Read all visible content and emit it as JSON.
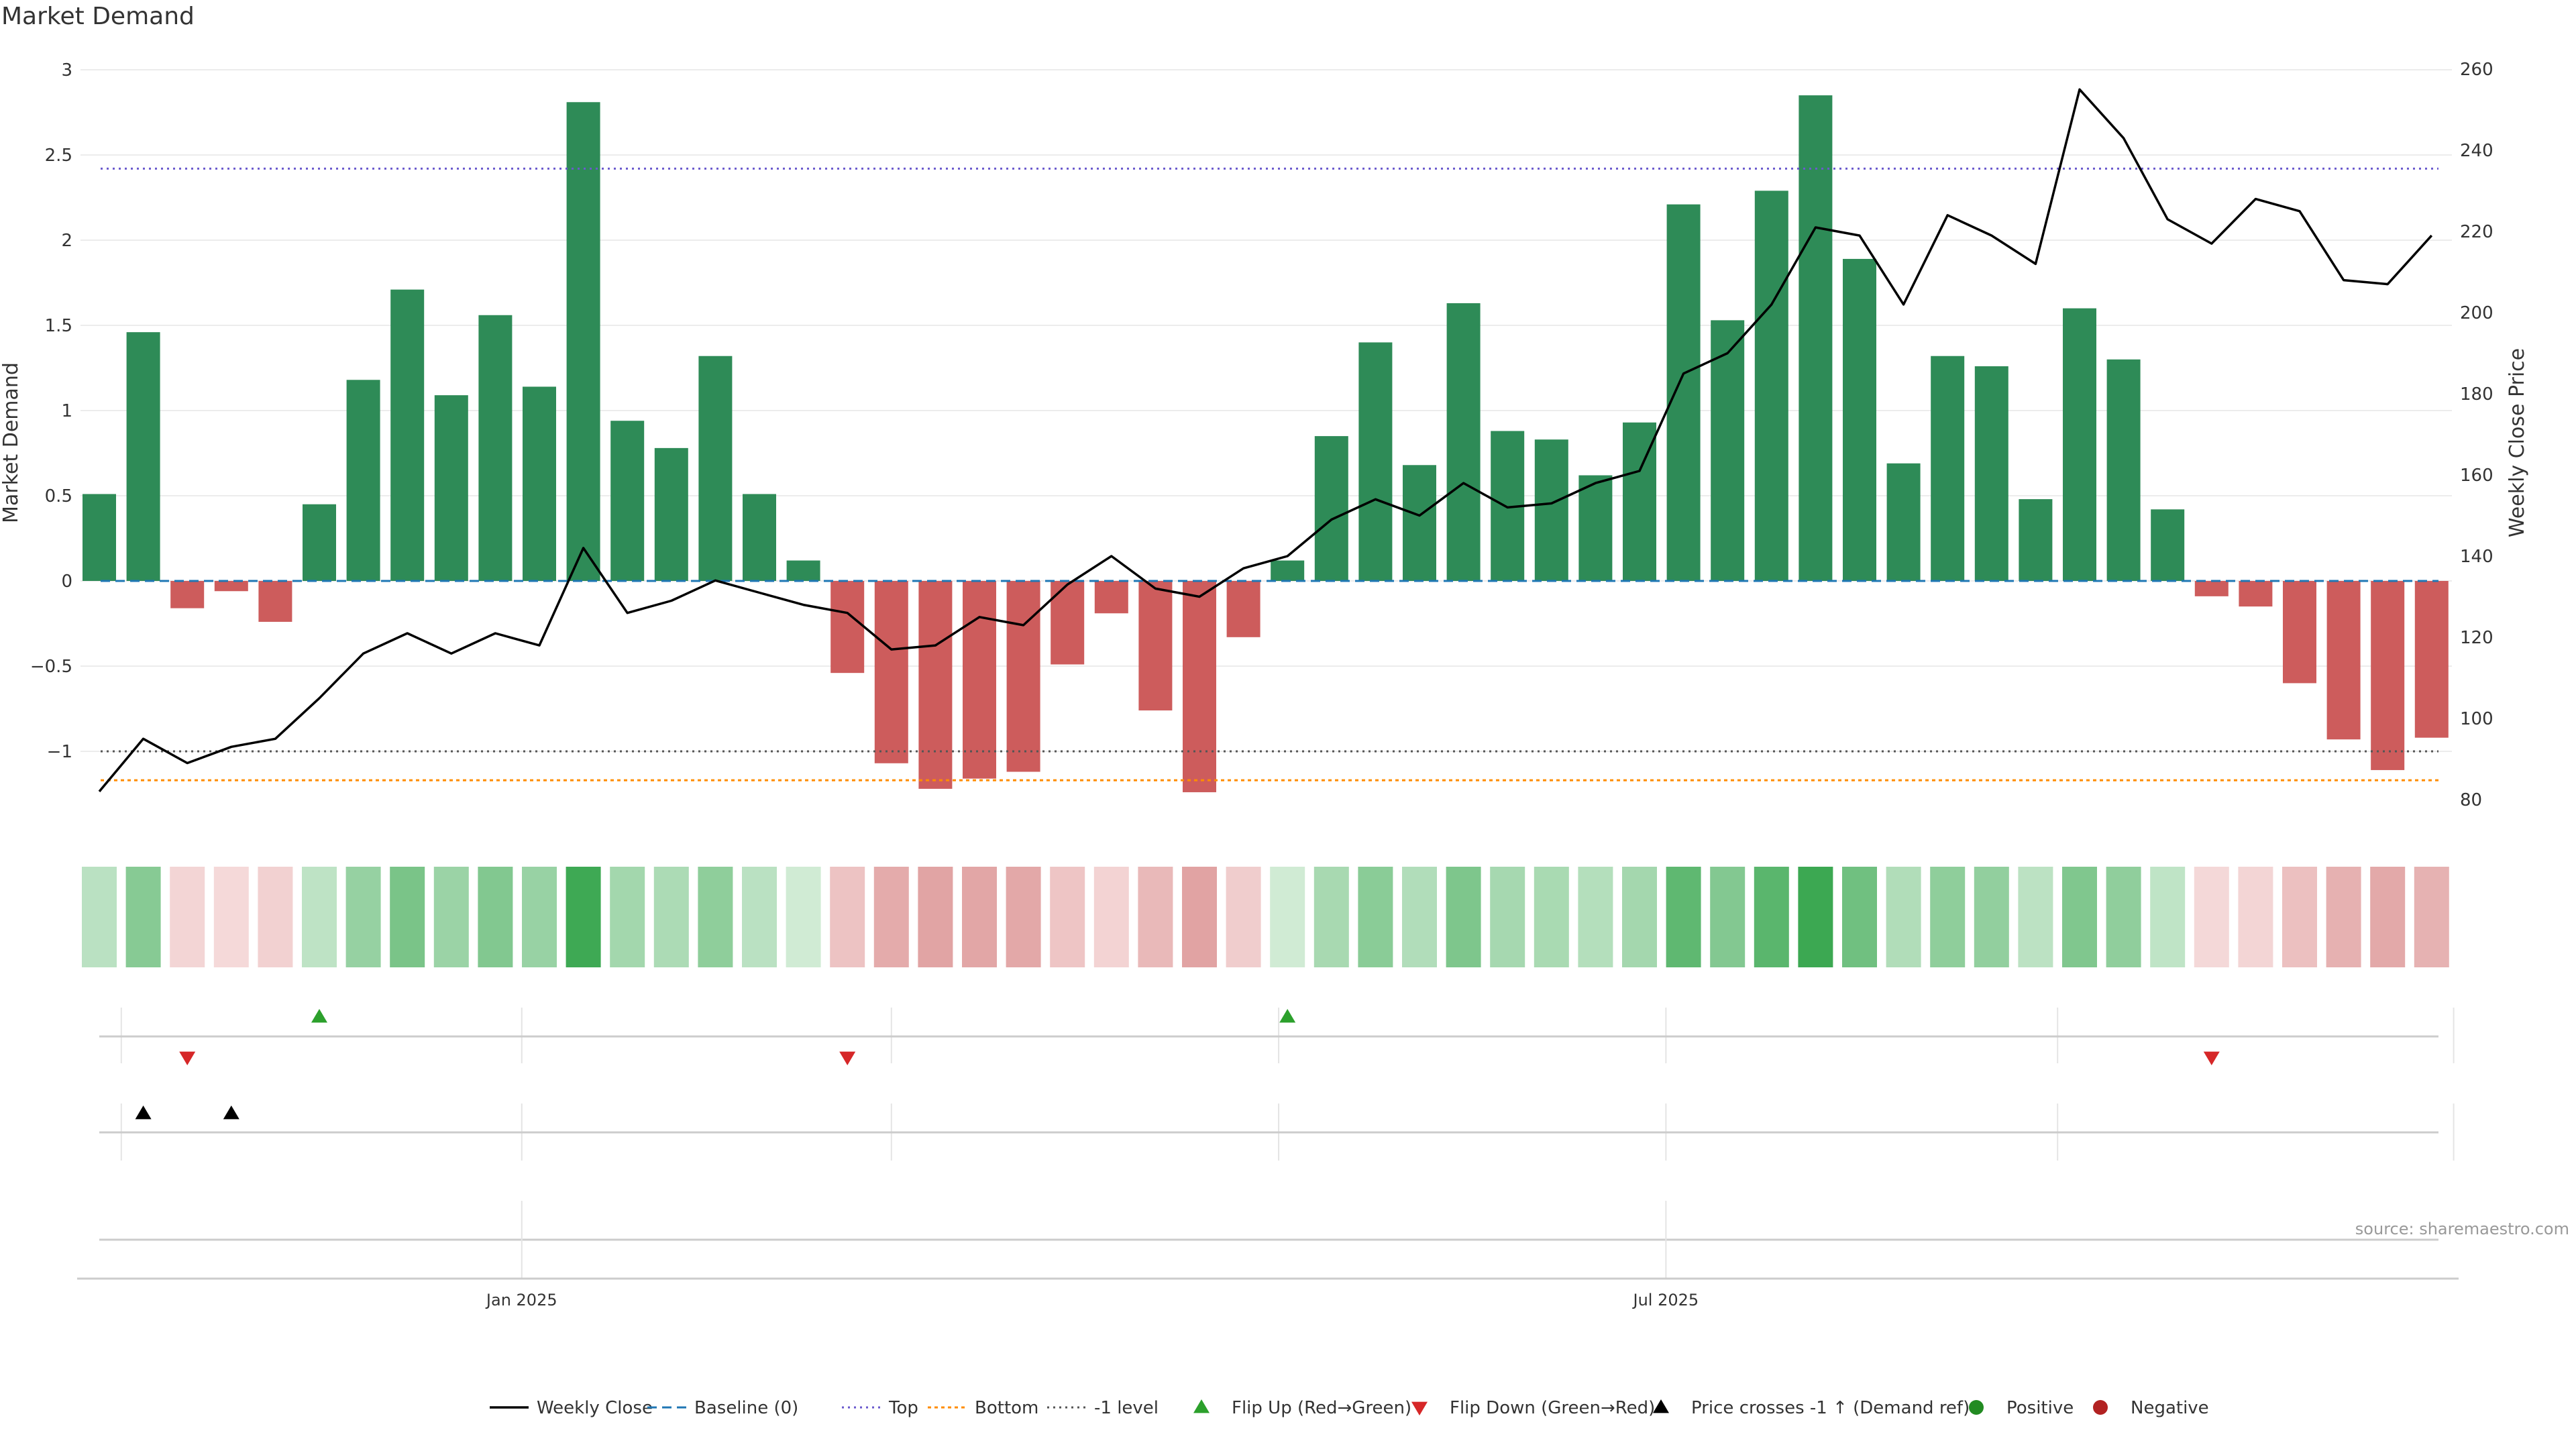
{
  "title": "Market Demand",
  "source": "source: sharemaestro.com",
  "colors": {
    "bar_pos": "#2e8b57",
    "bar_neg": "#cd5c5c",
    "price_line": "#000000",
    "baseline": "#1f77b4",
    "top": "#6a5acd",
    "bottom": "#ff8c00",
    "minus1": "#555555",
    "flip_up": "#2ca02c",
    "flip_down": "#d62728",
    "cross": "#000000",
    "positive": "#228b22",
    "negative": "#b22222"
  },
  "chart_data": {
    "type": "bar",
    "title": "Market Demand",
    "ylabel": "Market Demand",
    "y2label": "Weekly Close Price",
    "ylim": [
      -1.45,
      3.0
    ],
    "y2lim": [
      75,
      260
    ],
    "yticks": [
      "3",
      "2.5",
      "2",
      "1.5",
      "1",
      "0.5",
      "0",
      "−0.5",
      "−1"
    ],
    "yticks_values": [
      3,
      2.5,
      2,
      1.5,
      1,
      0.5,
      0,
      -0.5,
      -1
    ],
    "y2ticks": [
      "260",
      "240",
      "220",
      "200",
      "180",
      "160",
      "140",
      "120",
      "100",
      "80"
    ],
    "y2ticks_values": [
      260,
      240,
      220,
      200,
      180,
      160,
      140,
      120,
      100,
      80
    ],
    "xticks": [
      {
        "label": "Jan 2025",
        "week": 9.6
      },
      {
        "label": "Jul 2025",
        "week": 35.6
      }
    ],
    "grid_weeks": [
      0.5,
      9.6,
      18,
      26.8,
      35.6,
      44.5,
      53.5
    ],
    "reference_lines": {
      "baseline": 0,
      "top": 2.42,
      "bottom": -1.17,
      "minus1": -1.0
    },
    "demand": [
      0.51,
      1.46,
      -0.16,
      -0.06,
      -0.24,
      0.45,
      1.18,
      1.71,
      1.09,
      1.56,
      1.14,
      2.81,
      0.94,
      0.78,
      1.32,
      0.51,
      0.12,
      -0.54,
      -1.07,
      -1.22,
      -1.16,
      -1.12,
      -0.49,
      -0.19,
      -0.76,
      -1.24,
      -0.33,
      0.12,
      0.85,
      1.4,
      0.68,
      1.63,
      0.88,
      0.83,
      0.62,
      0.93,
      2.21,
      1.53,
      2.29,
      2.85,
      1.89,
      0.69,
      1.32,
      1.26,
      0.48,
      1.6,
      1.3,
      0.42,
      -0.09,
      -0.15,
      -0.6,
      -0.93,
      -1.11,
      -0.92
    ],
    "weekly_close": [
      82,
      95,
      89,
      93,
      95,
      105,
      116,
      121,
      116,
      121,
      118,
      142,
      126,
      129,
      134,
      131,
      128,
      126,
      117,
      118,
      125,
      123,
      133,
      140,
      132,
      130,
      137,
      140,
      149,
      154,
      150,
      158,
      152,
      153,
      158,
      161,
      185,
      190,
      202,
      221,
      219,
      202,
      224,
      219,
      212,
      255,
      243,
      223,
      217,
      228,
      225,
      208,
      207,
      219
    ],
    "flip_up_weeks": [
      5,
      27
    ],
    "flip_down_weeks": [
      2,
      17,
      48
    ],
    "price_cross_weeks": [
      1,
      3
    ],
    "legend": [
      "Weekly Close",
      "Baseline (0)",
      "Top",
      "Bottom",
      "-1 level",
      "Flip Up (Red→Green)",
      "Flip Down (Green→Red)",
      "Price crosses -1 ↑ (Demand ref)",
      "Positive",
      "Negative"
    ],
    "legend_position": "bottom-center"
  }
}
